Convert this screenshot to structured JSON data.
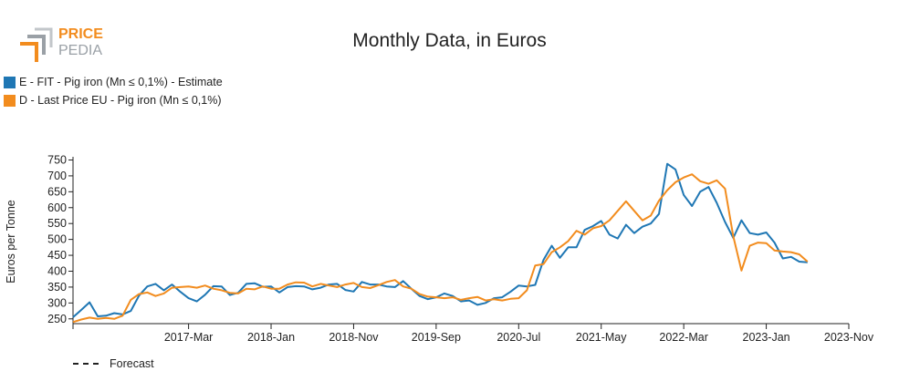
{
  "brand": {
    "line1": "PRICE",
    "line2": "PEDIA",
    "accent": "#f28c1e",
    "gray": "#9aa0a6"
  },
  "chart_data": {
    "type": "line",
    "title": "Monthly Data, in Euros",
    "xlabel": "",
    "ylabel": "Euros per Tonne",
    "ylim": [
      235,
      760
    ],
    "yticks": [
      250,
      300,
      350,
      400,
      450,
      500,
      550,
      600,
      650,
      700,
      750
    ],
    "x_range": [
      "2016-01",
      "2023-11"
    ],
    "xticks": [
      {
        "label": "2017-Mar",
        "month": "2017-03"
      },
      {
        "label": "2018-Jan",
        "month": "2018-01"
      },
      {
        "label": "2018-Nov",
        "month": "2018-11"
      },
      {
        "label": "2019-Sep",
        "month": "2019-09"
      },
      {
        "label": "2020-Jul",
        "month": "2020-07"
      },
      {
        "label": "2021-May",
        "month": "2021-05"
      },
      {
        "label": "2022-Mar",
        "month": "2022-03"
      },
      {
        "label": "2023-Jan",
        "month": "2023-01"
      },
      {
        "label": "2023-Nov",
        "month": "2023-11"
      }
    ],
    "grid": false,
    "legend_position": "top-left",
    "forecast_label": "Forecast",
    "series": [
      {
        "name": "E - FIT - Pig iron (Mn ≤ 0,1%) - Estimate",
        "color": "#1f77b4",
        "start": "2016-01",
        "values": [
          255,
          278,
          302,
          258,
          260,
          268,
          264,
          275,
          323,
          352,
          360,
          340,
          358,
          335,
          315,
          305,
          326,
          353,
          352,
          325,
          332,
          360,
          362,
          351,
          352,
          333,
          350,
          353,
          352,
          343,
          348,
          358,
          360,
          341,
          336,
          366,
          358,
          358,
          352,
          350,
          369,
          345,
          322,
          312,
          318,
          330,
          322,
          305,
          308,
          294,
          300,
          315,
          318,
          335,
          355,
          352,
          357,
          435,
          480,
          442,
          475,
          475,
          530,
          542,
          558,
          515,
          503,
          546,
          520,
          540,
          550,
          580,
          738,
          720,
          640,
          605,
          650,
          665,
          615,
          555,
          505,
          560,
          520,
          515,
          522,
          490,
          440,
          445,
          430,
          428
        ]
      },
      {
        "name": "D - Last Price EU - Pig iron (Mn ≤ 0,1%)",
        "color": "#f28c1e",
        "start": "2016-01",
        "values": [
          240,
          248,
          254,
          250,
          253,
          250,
          260,
          310,
          328,
          333,
          322,
          330,
          348,
          350,
          352,
          348,
          355,
          345,
          340,
          332,
          330,
          345,
          343,
          352,
          345,
          345,
          358,
          365,
          364,
          352,
          360,
          355,
          350,
          358,
          363,
          350,
          347,
          356,
          366,
          372,
          352,
          345,
          328,
          320,
          318,
          315,
          318,
          310,
          315,
          319,
          308,
          312,
          308,
          313,
          315,
          340,
          418,
          422,
          460,
          475,
          495,
          527,
          515,
          535,
          542,
          560,
          590,
          620,
          590,
          560,
          575,
          622,
          655,
          680,
          695,
          705,
          683,
          675,
          686,
          660,
          510,
          402,
          480,
          490,
          488,
          465,
          462,
          460,
          453,
          430
        ]
      }
    ]
  }
}
